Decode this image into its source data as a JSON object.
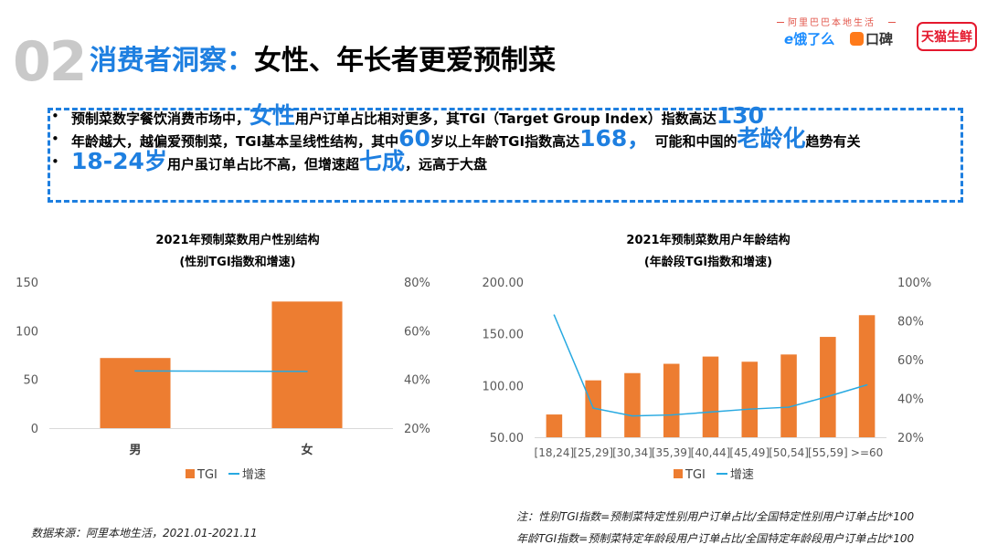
{
  "header": {
    "section_number": "02",
    "title_lead": "消费者洞察：",
    "title_rest": "女性、年长者更爱预制菜"
  },
  "brands": {
    "subtitle": "阿里巴巴本地生活",
    "eleme": "饿了么",
    "eleme_mark": "e",
    "koubei": "口碑",
    "tmall": "天猫生鲜"
  },
  "bullets": [
    {
      "marker": "•",
      "parts": [
        {
          "t": "预制菜数字餐饮消费市场中，",
          "hl": false
        },
        {
          "t": "女性",
          "hl": true
        },
        {
          "t": "用户订单占比相对更多，其TGI（Target Group Index）指数高达",
          "hl": false
        },
        {
          "t": "130",
          "hl": true
        }
      ]
    },
    {
      "marker": "•",
      "parts": [
        {
          "t": "年龄越大，越偏爱预制菜，TGI基本呈线性结构，其中",
          "hl": false
        },
        {
          "t": "60",
          "hl": true
        },
        {
          "t": "岁以上年龄TGI指数高达",
          "hl": false
        },
        {
          "t": "168，",
          "hl": true
        },
        {
          "t": " 可能和中国的",
          "hl": false
        },
        {
          "t": "老龄化",
          "hl": true
        },
        {
          "t": "趋势有关",
          "hl": false
        }
      ]
    },
    {
      "marker": "•",
      "parts": [
        {
          "t": "18-24岁",
          "hl": true
        },
        {
          "t": "用户虽订单占比不高，但增速超",
          "hl": false
        },
        {
          "t": "七成",
          "hl": true
        },
        {
          "t": "，远高于大盘",
          "hl": false
        }
      ]
    }
  ],
  "charts": {
    "gender": {
      "title": "2021年预制菜数用户性别结构",
      "subtitle": "(性别TGI指数和增速)"
    },
    "age": {
      "title": "2021年预制菜数用户年龄结构",
      "subtitle": "(年龄段TGI指数和增速)"
    }
  },
  "colors": {
    "bar": "#ed7d31",
    "line": "#27a9e1",
    "accent": "#1e7fe0",
    "axis_text": "#595959"
  },
  "chart_data": [
    {
      "type": "bar",
      "id": "gender",
      "title": "2021年预制菜数用户性别结构",
      "subtitle": "(性别TGI指数和增速)",
      "categories": [
        "男",
        "女"
      ],
      "series": [
        {
          "name": "TGI",
          "type": "bar",
          "axis": "left",
          "values": [
            72,
            130
          ]
        },
        {
          "name": "增速",
          "type": "line",
          "axis": "right",
          "values": [
            43.5,
            43.3
          ]
        }
      ],
      "left_axis": {
        "ticks": [
          "150",
          "100",
          "50",
          "0"
        ],
        "range": [
          0,
          150
        ]
      },
      "right_axis": {
        "ticks": [
          "80%",
          "60%",
          "40%",
          "20%"
        ],
        "range": [
          20,
          80
        ]
      },
      "legend": [
        "TGI",
        "增速"
      ]
    },
    {
      "type": "bar",
      "id": "age",
      "title": "2021年预制菜数用户年龄结构",
      "subtitle": "(年龄段TGI指数和增速)",
      "categories": [
        "[18,24]",
        "[25,29]",
        "[30,34]",
        "[35,39]",
        "[40,44]",
        "[45,49]",
        "[50,54]",
        "[55,59]",
        ">=60"
      ],
      "series": [
        {
          "name": "TGI",
          "type": "bar",
          "axis": "left",
          "values": [
            72,
            105,
            112,
            121,
            128,
            123,
            130,
            147,
            168
          ]
        },
        {
          "name": "增速",
          "type": "line",
          "axis": "right",
          "values": [
            83,
            35,
            31,
            31.5,
            33,
            34.5,
            35.5,
            41,
            47
          ]
        }
      ],
      "left_axis": {
        "ticks": [
          "200.00",
          "150.00",
          "100.00",
          "50.00"
        ],
        "range": [
          50,
          200
        ]
      },
      "right_axis": {
        "ticks": [
          "100%",
          "80%",
          "60%",
          "40%",
          "20%"
        ],
        "range": [
          20,
          100
        ]
      },
      "legend": [
        "TGI",
        "增速"
      ]
    }
  ],
  "footer": {
    "source": "数据来源：阿里本地生活，2021.01-2021.11",
    "note_1": "注：性别TGI指数=预制菜特定性别用户订单占比/全国特定性别用户订单占比*100",
    "note_2": "年龄TGI指数=预制菜特定年龄段用户订单占比/全国特定年龄段用户订单占比*100"
  }
}
